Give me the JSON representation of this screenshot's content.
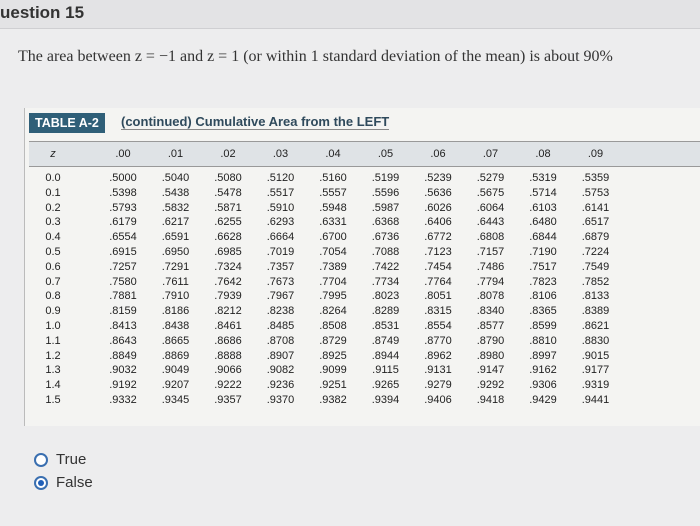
{
  "header": {
    "title": "uestion 15"
  },
  "question": {
    "text": "The area between z = −1 and z = 1 (or within 1 standard deviation of the mean) is about 90%"
  },
  "table": {
    "label": "TABLE A-2",
    "title": "(continued) Cumulative Area from the LEFT",
    "columns": [
      "z",
      ".00",
      ".01",
      ".02",
      ".03",
      ".04",
      ".05",
      ".06",
      ".07",
      ".08",
      ".09"
    ],
    "rows": [
      [
        "0.0",
        ".5000",
        ".5040",
        ".5080",
        ".5120",
        ".5160",
        ".5199",
        ".5239",
        ".5279",
        ".5319",
        ".5359"
      ],
      [
        "0.1",
        ".5398",
        ".5438",
        ".5478",
        ".5517",
        ".5557",
        ".5596",
        ".5636",
        ".5675",
        ".5714",
        ".5753"
      ],
      [
        "0.2",
        ".5793",
        ".5832",
        ".5871",
        ".5910",
        ".5948",
        ".5987",
        ".6026",
        ".6064",
        ".6103",
        ".6141"
      ],
      [
        "0.3",
        ".6179",
        ".6217",
        ".6255",
        ".6293",
        ".6331",
        ".6368",
        ".6406",
        ".6443",
        ".6480",
        ".6517"
      ],
      [
        "0.4",
        ".6554",
        ".6591",
        ".6628",
        ".6664",
        ".6700",
        ".6736",
        ".6772",
        ".6808",
        ".6844",
        ".6879"
      ],
      [
        "0.5",
        ".6915",
        ".6950",
        ".6985",
        ".7019",
        ".7054",
        ".7088",
        ".7123",
        ".7157",
        ".7190",
        ".7224"
      ],
      [
        "0.6",
        ".7257",
        ".7291",
        ".7324",
        ".7357",
        ".7389",
        ".7422",
        ".7454",
        ".7486",
        ".7517",
        ".7549"
      ],
      [
        "0.7",
        ".7580",
        ".7611",
        ".7642",
        ".7673",
        ".7704",
        ".7734",
        ".7764",
        ".7794",
        ".7823",
        ".7852"
      ],
      [
        "0.8",
        ".7881",
        ".7910",
        ".7939",
        ".7967",
        ".7995",
        ".8023",
        ".8051",
        ".8078",
        ".8106",
        ".8133"
      ],
      [
        "0.9",
        ".8159",
        ".8186",
        ".8212",
        ".8238",
        ".8264",
        ".8289",
        ".8315",
        ".8340",
        ".8365",
        ".8389"
      ],
      [
        "1.0",
        ".8413",
        ".8438",
        ".8461",
        ".8485",
        ".8508",
        ".8531",
        ".8554",
        ".8577",
        ".8599",
        ".8621"
      ],
      [
        "1.1",
        ".8643",
        ".8665",
        ".8686",
        ".8708",
        ".8729",
        ".8749",
        ".8770",
        ".8790",
        ".8810",
        ".8830"
      ],
      [
        "1.2",
        ".8849",
        ".8869",
        ".8888",
        ".8907",
        ".8925",
        ".8944",
        ".8962",
        ".8980",
        ".8997",
        ".9015"
      ],
      [
        "1.3",
        ".9032",
        ".9049",
        ".9066",
        ".9082",
        ".9099",
        ".9115",
        ".9131",
        ".9147",
        ".9162",
        ".9177"
      ],
      [
        "1.4",
        ".9192",
        ".9207",
        ".9222",
        ".9236",
        ".9251",
        ".9265",
        ".9279",
        ".9292",
        ".9306",
        ".9319"
      ],
      [
        "1.5",
        ".9332",
        ".9345",
        ".9357",
        ".9370",
        ".9382",
        ".9394",
        ".9406",
        ".9418",
        ".9429",
        ".9441"
      ]
    ]
  },
  "options": {
    "items": [
      "True",
      "False"
    ],
    "selected_index": 1
  }
}
